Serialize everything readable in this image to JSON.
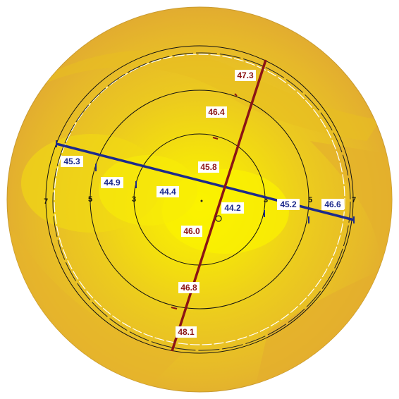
{
  "colors": {
    "outer": "#e8b22e",
    "mid": "#ecc224",
    "inner": "#f2dc10",
    "center": "#fbf400",
    "flat_meridian": "#1c2a8c",
    "steep_meridian": "#8c1414"
  },
  "ring_labels": {
    "left": [
      "7",
      "5",
      "3"
    ],
    "right": [
      "3",
      "5",
      "7"
    ]
  },
  "flat_meridian_values": [
    "45.3",
    "44.9",
    "44.4",
    "44.2",
    "45.2",
    "46.6"
  ],
  "steep_meridian_values": [
    "47.3",
    "46.4",
    "45.8",
    "46.0",
    "46.8",
    "48.1"
  ]
}
